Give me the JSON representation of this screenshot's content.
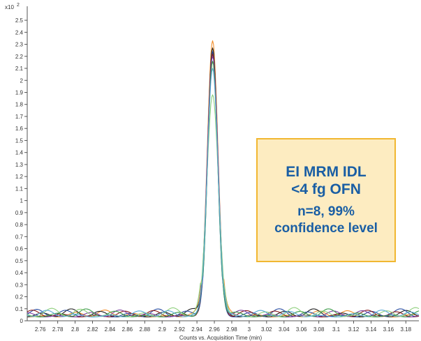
{
  "chart_data": {
    "type": "line",
    "title": "",
    "xlabel": "Counts vs. Acquisition Time (min)",
    "ylabel": "",
    "y_scale_label": "x10",
    "y_scale_exp": "2",
    "xlim": [
      2.745,
      3.195
    ],
    "ylim": [
      0,
      2.57
    ],
    "x_ticks": [
      "2.76",
      "2.78",
      "2.8",
      "2.82",
      "2.84",
      "2.86",
      "2.88",
      "2.9",
      "2.92",
      "2.94",
      "2.96",
      "2.98",
      "3",
      "3.02",
      "3.04",
      "3.06",
      "3.08",
      "3.1",
      "3.12",
      "3.14",
      "3.16",
      "3.18"
    ],
    "y_ticks": [
      "0",
      "0.1",
      "0.2",
      "0.3",
      "0.4",
      "0.5",
      "0.6",
      "0.7",
      "0.8",
      "0.9",
      "1",
      "1.1",
      "1.2",
      "1.3",
      "1.4",
      "1.5",
      "1.6",
      "1.7",
      "1.8",
      "1.9",
      "2",
      "2.1",
      "2.2",
      "2.3",
      "2.4",
      "2.5"
    ],
    "grid": false,
    "peak_center": 2.958,
    "series": [
      {
        "color": "#f28e2b",
        "peak": 2.33,
        "width": 0.0062,
        "phase": 0.3,
        "noise": 0.06
      },
      {
        "color": "#1f1f1f",
        "peak": 2.27,
        "width": 0.006,
        "phase": 1.1,
        "noise": 0.07
      },
      {
        "color": "#2b4fa3",
        "peak": 2.24,
        "width": 0.0058,
        "phase": 2.0,
        "noise": 0.07
      },
      {
        "color": "#8b1a1a",
        "peak": 2.22,
        "width": 0.0061,
        "phase": 2.7,
        "noise": 0.06
      },
      {
        "color": "#7b3fa0",
        "peak": 2.2,
        "width": 0.0063,
        "phase": 3.5,
        "noise": 0.06
      },
      {
        "color": "#3a9a48",
        "peak": 2.16,
        "width": 0.0059,
        "phase": 4.3,
        "noise": 0.07
      },
      {
        "color": "#8ecf7c",
        "peak": 1.88,
        "width": 0.0068,
        "phase": 5.2,
        "noise": 0.08
      },
      {
        "color": "#5aa9d6",
        "peak": 2.1,
        "width": 0.0062,
        "phase": 6.0,
        "noise": 0.06
      }
    ]
  },
  "callout": {
    "line1": "EI MRM IDL",
    "line2": "<4 fg OFN",
    "line3": "n=8, 99%",
    "line4": "confidence level"
  }
}
